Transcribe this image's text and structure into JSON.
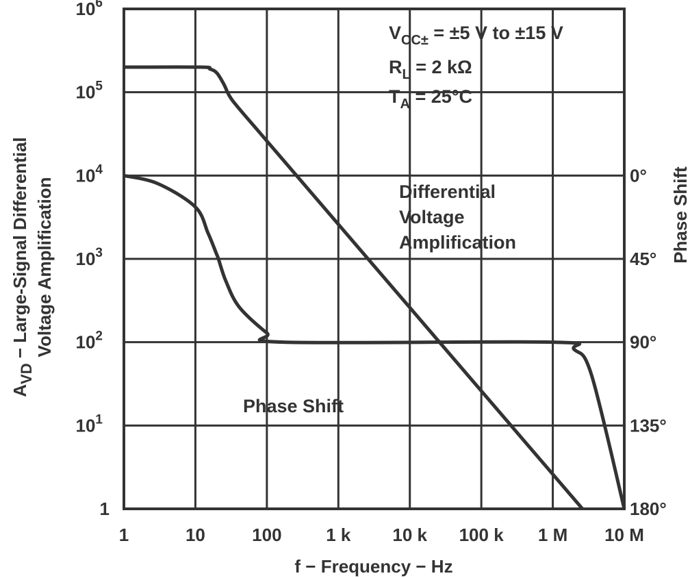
{
  "chart_data": {
    "type": "line",
    "xlabel": "f − Frequency − Hz",
    "ylabel_line1": "A",
    "ylabel_sub": "VD",
    "ylabel_rest": " − Large-Signal Differential",
    "ylabel_line2": "Voltage Amplification",
    "y2label": "Phase Shift",
    "x_scale": "log",
    "y_scale": "log",
    "xlim": [
      1,
      10000000
    ],
    "ylim": [
      1,
      1000000
    ],
    "y2lim": [
      180,
      0
    ],
    "grid": true,
    "xticks": [
      {
        "value": 1,
        "label": "1"
      },
      {
        "value": 10,
        "label": "10"
      },
      {
        "value": 100,
        "label": "100"
      },
      {
        "value": 1000,
        "label": "1 k"
      },
      {
        "value": 10000,
        "label": "10 k"
      },
      {
        "value": 100000,
        "label": "100 k"
      },
      {
        "value": 1000000,
        "label": "1 M"
      },
      {
        "value": 10000000,
        "label": "10 M"
      }
    ],
    "yticks": [
      {
        "value": 1,
        "base": "1",
        "exp": ""
      },
      {
        "value": 10,
        "base": "10",
        "exp": "1"
      },
      {
        "value": 100,
        "base": "10",
        "exp": "2"
      },
      {
        "value": 1000,
        "base": "10",
        "exp": "3"
      },
      {
        "value": 10000,
        "base": "10",
        "exp": "4"
      },
      {
        "value": 100000,
        "base": "10",
        "exp": "5"
      },
      {
        "value": 1000000,
        "base": "10",
        "exp": "6"
      }
    ],
    "y2ticks": [
      {
        "value": 0,
        "label": "0°"
      },
      {
        "value": 45,
        "label": "45°"
      },
      {
        "value": 90,
        "label": "90°"
      },
      {
        "value": 135,
        "label": "135°"
      },
      {
        "value": 180,
        "label": "180°"
      }
    ],
    "series": [
      {
        "name": "Differential Voltage Amplification",
        "label_lines": [
          "Differential",
          "Voltage",
          "Amplification"
        ],
        "axis": "left",
        "points": [
          [
            1,
            200000
          ],
          [
            12,
            200000
          ],
          [
            16,
            190000
          ],
          [
            20,
            170000
          ],
          [
            25,
            125000
          ],
          [
            30,
            90000
          ],
          [
            40,
            65000
          ],
          [
            100,
            26000
          ],
          [
            1000,
            2600
          ],
          [
            10000,
            260
          ],
          [
            100000,
            26
          ],
          [
            1000000,
            2.6
          ],
          [
            2600000,
            1
          ]
        ]
      },
      {
        "name": "Phase Shift",
        "label_lines": [
          "Phase Shift"
        ],
        "axis": "right",
        "points": [
          [
            1,
            0
          ],
          [
            3,
            4.4
          ],
          [
            10,
            17
          ],
          [
            15,
            31
          ],
          [
            19.6,
            42
          ],
          [
            21,
            45
          ],
          [
            26.7,
            57
          ],
          [
            41,
            71
          ],
          [
            100,
            85
          ],
          [
            174,
            90
          ],
          [
            1000000,
            90
          ],
          [
            2000000,
            94
          ],
          [
            3500000,
            108
          ],
          [
            10000000,
            180
          ]
        ]
      }
    ],
    "annotations": {
      "vcc": {
        "main": "V",
        "sub": "CC±",
        "rest": " = ±5 V to ±15 V"
      },
      "rl": {
        "main": "R",
        "sub": "L",
        "rest": " = 2 kΩ"
      },
      "ta": {
        "main": "T",
        "sub": "A",
        "rest": " = 25°C"
      }
    }
  }
}
